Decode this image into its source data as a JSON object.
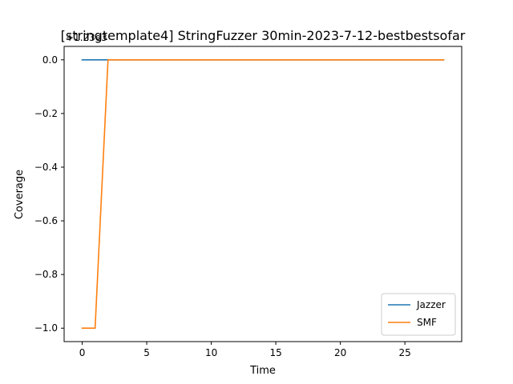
{
  "chart_data": {
    "type": "line",
    "title": "[stringtemplate4] StringFuzzer 30min-2023-7-12-bestbestsofar",
    "xlabel": "Time",
    "ylabel": "Coverage",
    "offset_label": "+1.23e3",
    "xlim": [
      -1.4,
      29.4
    ],
    "ylim": [
      -1.05,
      0.05
    ],
    "xticks": [
      0,
      5,
      10,
      15,
      20,
      25
    ],
    "yticks": [
      0.0,
      -0.2,
      -0.4,
      -0.6,
      -0.8,
      -1.0
    ],
    "ytick_labels": [
      "0.0",
      "−0.2",
      "−0.4",
      "−0.6",
      "−0.8",
      "−1.0"
    ],
    "grid": false,
    "legend_position": "lower-right",
    "series": [
      {
        "name": "Jazzer",
        "color": "#1f77b4",
        "x": [
          0,
          28
        ],
        "y": [
          0.0,
          0.0
        ]
      },
      {
        "name": "SMF",
        "color": "#ff7f0e",
        "x": [
          0,
          1,
          2,
          28
        ],
        "y": [
          -1.0,
          -1.0,
          0.0,
          0.0
        ]
      }
    ]
  }
}
